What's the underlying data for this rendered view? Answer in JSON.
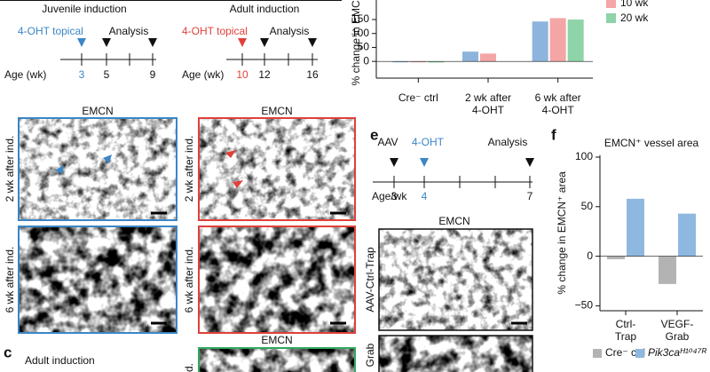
{
  "panel_a": {
    "juvenile": {
      "title": "Juvenile induction",
      "treatment": "4-OHT topical",
      "analysis": "Analysis",
      "axis_label": "Age (wk)",
      "ages": [
        "3",
        "5",
        "9"
      ]
    },
    "adult": {
      "title": "Adult induction",
      "treatment": "4-OHT topical",
      "analysis": "Analysis",
      "axis_label": "Age (wk)",
      "ages": [
        "10",
        "12",
        "16"
      ]
    }
  },
  "images": {
    "titles": [
      "EMCN",
      "EMCN"
    ],
    "row_labels": [
      "2 wk after ind.",
      "6 wk after ind.",
      "2 wk after ind.",
      "6 wk after ind."
    ]
  },
  "panel_c": {
    "label": "c",
    "title": "Adult induction",
    "image_title": "EMCN",
    "row_label": "d."
  },
  "panel_e": {
    "label": "e",
    "steps": [
      "AAV",
      "4-OHT",
      "Analysis"
    ],
    "axis_label": "Age/wk",
    "ages": [
      "3",
      "4",
      "7"
    ],
    "image_title": "EMCN",
    "row_labels": [
      "AAV-Ctrl-Trap",
      "Grab"
    ]
  },
  "panel_f_label": "f",
  "chart_data": [
    {
      "type": "bar",
      "y_label": "% change in EMCN",
      "categories": [
        "Cre⁻ ctrl",
        "2 wk after\n4-OHT",
        "6 wk after\n4-OHT"
      ],
      "series": [
        {
          "color": "#8db4dc",
          "values": [
            0,
            35,
            143
          ]
        },
        {
          "name": "10 wk",
          "color": "#f4a5a5",
          "values": [
            -2,
            28,
            155
          ]
        },
        {
          "name": "20 wk",
          "color": "#8fd4a8",
          "values": [
            -4,
            null,
            150
          ]
        }
      ],
      "ylim": [
        -60,
        220
      ],
      "yticks": [
        0,
        50,
        100,
        150
      ]
    },
    {
      "type": "bar",
      "title": "EMCN⁺ vessel area",
      "y_label": "% change in EMCN⁺ area",
      "categories": [
        "Ctrl-\nTrap",
        "VEGF-\nGrab"
      ],
      "series": [
        {
          "name": "Cre⁻ ctrl",
          "color": "#b3b3b3",
          "values": [
            -3,
            -28
          ]
        },
        {
          "name": "Pik3caᴴ¹⁰⁴⁷ᴿ",
          "color": "#8fb8e0",
          "values": [
            58,
            43
          ]
        }
      ],
      "ylim": [
        -55,
        102
      ],
      "yticks": [
        {
          "value": -50,
          "label": "−50"
        },
        0,
        50,
        100
      ]
    }
  ]
}
